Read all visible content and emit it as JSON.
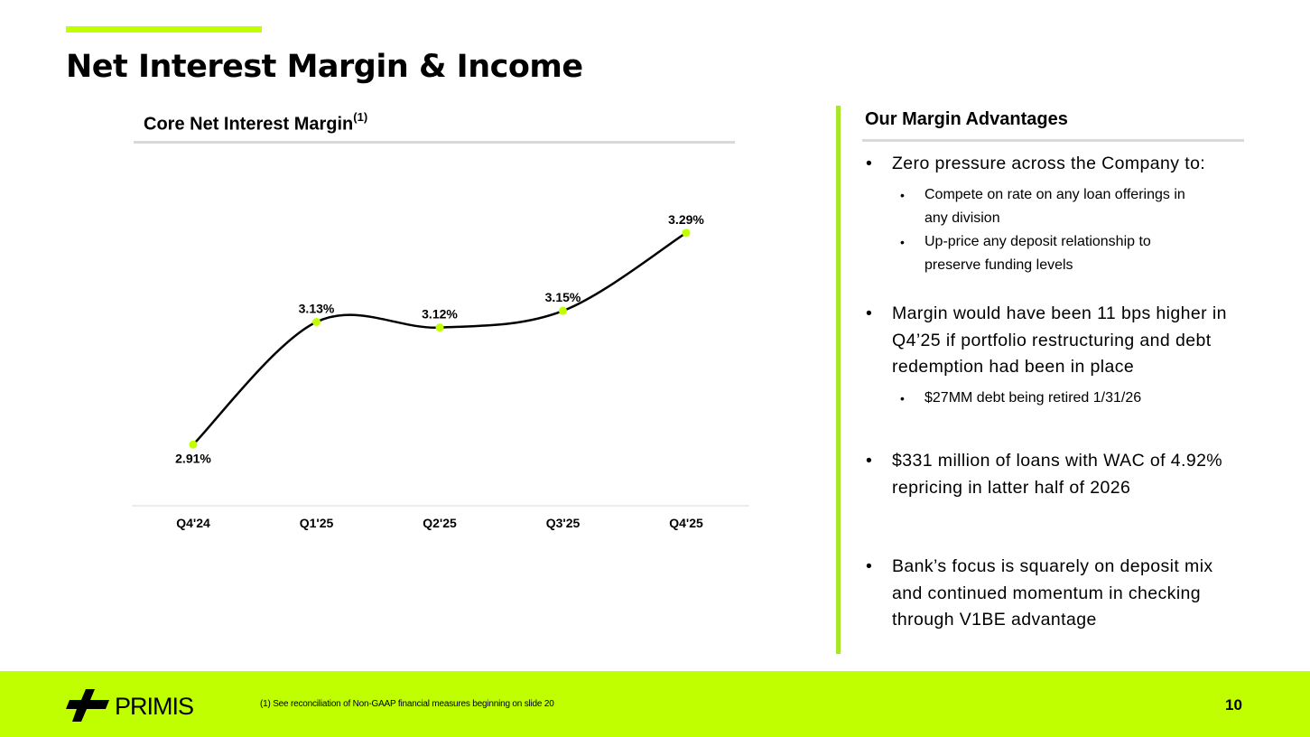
{
  "slide": {
    "title": "Net Interest Margin & Income",
    "page_number": "10",
    "footnote": "(1) See reconciliation of Non-GAAP financial measures beginning on slide 20",
    "logo_text": "PRIMIS"
  },
  "chart_header": {
    "title": "Core Net Interest Margin",
    "superscript": "(1)"
  },
  "chart_data": {
    "type": "line",
    "title": "Core Net Interest Margin(1)",
    "categories": [
      "Q4'24",
      "Q1'25",
      "Q2'25",
      "Q3'25",
      "Q4'25"
    ],
    "values": [
      2.91,
      3.13,
      3.12,
      3.15,
      3.29
    ],
    "labels": [
      "2.91%",
      "3.13%",
      "3.12%",
      "3.15%",
      "3.29%"
    ],
    "unit": "%",
    "ylim": [
      2.8,
      3.4
    ],
    "grid": false,
    "legend": "none",
    "line_color": "#000000",
    "marker_color": "#c0ff00",
    "smooth": true
  },
  "advantages": {
    "title": "Our Margin Advantages",
    "bullet1": "Zero pressure across the Company to:",
    "bullet1_sub1_line1": "Compete on rate on any loan offerings in",
    "bullet1_sub1_line2": "any division",
    "bullet1_sub2_line1": "Up-price any deposit relationship to",
    "bullet1_sub2_line2": "preserve funding levels",
    "bullet2_line1": "Margin would have been 11 bps higher in",
    "bullet2_line2": "Q4’25 if portfolio restructuring and debt",
    "bullet2_line3": "redemption had been in place",
    "bullet2_sub1": "$27MM debt being retired 1/31/26",
    "bullet3_line1": "$331 million of loans with WAC of 4.92%",
    "bullet3_line2": "repricing in latter half of 2026",
    "bullet4_line1": "Bank’s focus is squarely on deposit mix",
    "bullet4_line2": "and continued momentum in checking",
    "bullet4_line3": "through V1BE advantage",
    "bullet_char": "•"
  },
  "colors": {
    "accent": "#c0ff00",
    "divider": "#a8e62a",
    "rule": "#d9d9d9"
  }
}
